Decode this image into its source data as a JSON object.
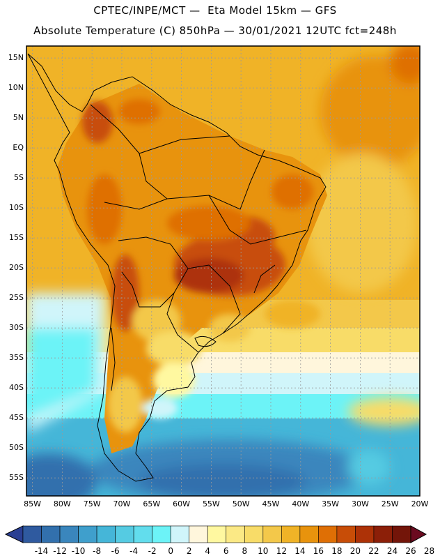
{
  "title": {
    "line1": "CPTEC/INPE/MCT —  Eta Model 15km — GFS",
    "line2": "Absolute Temperature (C) 850hPa — 30/01/2021 12UTC fct=248h"
  },
  "map": {
    "region": "South America",
    "lon_range": [
      -86,
      -20
    ],
    "lat_range": [
      -58,
      17
    ],
    "lat_ticks": [
      {
        "value": 15,
        "label": "15N"
      },
      {
        "value": 10,
        "label": "10N"
      },
      {
        "value": 5,
        "label": "5N"
      },
      {
        "value": 0,
        "label": "EQ"
      },
      {
        "value": -5,
        "label": "5S"
      },
      {
        "value": -10,
        "label": "10S"
      },
      {
        "value": -15,
        "label": "15S"
      },
      {
        "value": -20,
        "label": "20S"
      },
      {
        "value": -25,
        "label": "25S"
      },
      {
        "value": -30,
        "label": "30S"
      },
      {
        "value": -35,
        "label": "35S"
      },
      {
        "value": -40,
        "label": "40S"
      },
      {
        "value": -45,
        "label": "45S"
      },
      {
        "value": -50,
        "label": "50S"
      },
      {
        "value": -55,
        "label": "55S"
      }
    ],
    "lon_ticks": [
      {
        "value": -85,
        "label": "85W"
      },
      {
        "value": -80,
        "label": "80W"
      },
      {
        "value": -75,
        "label": "75W"
      },
      {
        "value": -70,
        "label": "70W"
      },
      {
        "value": -65,
        "label": "65W"
      },
      {
        "value": -60,
        "label": "60W"
      },
      {
        "value": -55,
        "label": "55W"
      },
      {
        "value": -50,
        "label": "50W"
      },
      {
        "value": -45,
        "label": "45W"
      },
      {
        "value": -40,
        "label": "40W"
      },
      {
        "value": -35,
        "label": "35W"
      },
      {
        "value": -30,
        "label": "30W"
      },
      {
        "value": -25,
        "label": "25W"
      },
      {
        "value": -20,
        "label": "20W"
      }
    ]
  },
  "colorbar": {
    "labels": [
      "-14",
      "-12",
      "-10",
      "-8",
      "-6",
      "-4",
      "-2",
      "0",
      "2",
      "4",
      "6",
      "8",
      "10",
      "12",
      "14",
      "16",
      "18",
      "20",
      "22",
      "24",
      "26",
      "28"
    ],
    "colors": [
      "#2a3f93",
      "#2f5a9f",
      "#3270ad",
      "#3a86bd",
      "#3f9fcc",
      "#45b6d8",
      "#55cbe2",
      "#62dded",
      "#6cf3f7",
      "#d0f5fa",
      "#fff6dc",
      "#fff8a0",
      "#fbe985",
      "#f8dc68",
      "#f3c84a",
      "#f0b327",
      "#e8930d",
      "#df6f05",
      "#c84d07",
      "#ad3207",
      "#8c1f08",
      "#731509",
      "#6b0a20"
    ]
  }
}
